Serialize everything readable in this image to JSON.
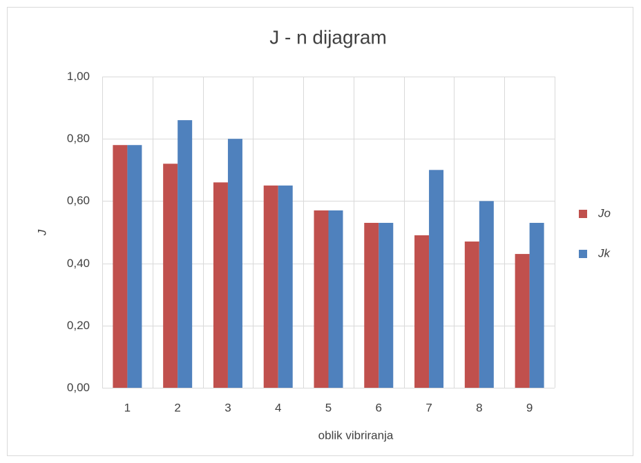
{
  "chart_data": {
    "type": "bar",
    "title": "J - n  dijagram",
    "x_label": "oblik vibriranja",
    "y_label": "J",
    "categories": [
      "1",
      "2",
      "3",
      "4",
      "5",
      "6",
      "7",
      "8",
      "9"
    ],
    "series": [
      {
        "name": "Jo",
        "color": "#c0504d",
        "values": [
          0.78,
          0.72,
          0.66,
          0.65,
          0.57,
          0.53,
          0.49,
          0.47,
          0.43
        ]
      },
      {
        "name": "Jk",
        "color": "#4f81bd",
        "values": [
          0.78,
          0.86,
          0.8,
          0.65,
          0.57,
          0.53,
          0.7,
          0.6,
          0.53
        ]
      }
    ],
    "ylim": [
      0,
      1
    ],
    "yticks": [
      {
        "value": 0,
        "label": "0,00"
      },
      {
        "value": 0.2,
        "label": "0,20"
      },
      {
        "value": 0.4,
        "label": "0,40"
      },
      {
        "value": 0.6,
        "label": "0,60"
      },
      {
        "value": 0.8,
        "label": "0,80"
      },
      {
        "value": 1,
        "label": "1,00"
      }
    ],
    "grid": true,
    "legend": "right"
  }
}
